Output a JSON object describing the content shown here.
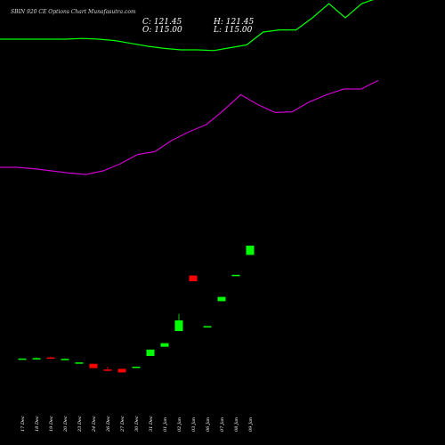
{
  "chart_data": {
    "type": "candlestick",
    "title": "SBIN 920 CE Options Chart Munafasutra.com",
    "ohlc_readout": {
      "close_label": "C: 121.45",
      "open_label": "O: 115.00",
      "high_label": "H: 121.45",
      "low_label": "L: 115.00"
    },
    "x_labels": [
      "17 Dec",
      "18 Dec",
      "19 Dec",
      "20 Dec",
      "23 Dec",
      "24 Dec",
      "26 Dec",
      "27 Dec",
      "30 Dec",
      "31 Dec",
      "01 Jan",
      "02 Jan",
      "03 Jan",
      "06 Jan",
      "07 Jan",
      "08 Jan",
      "09 Jan"
    ],
    "candles": [
      {
        "o": 21.0,
        "h": 21.0,
        "c": 21.5,
        "l": 20.0
      },
      {
        "o": 22.0,
        "h": 23.0,
        "c": 22.0,
        "l": 21.0
      },
      {
        "o": 23.0,
        "h": 24.0,
        "c": 22.0,
        "l": 22.0
      },
      {
        "o": 21.0,
        "h": 21.5,
        "c": 21.0,
        "l": 20.5
      },
      {
        "o": 16.0,
        "h": 16.0,
        "c": 16.0,
        "l": 16.0
      },
      {
        "o": 14.0,
        "h": 14.0,
        "c": 8.0,
        "l": 8.0
      },
      {
        "o": 6.0,
        "h": 10.0,
        "c": 5.0,
        "l": 4.0
      },
      {
        "o": 7.0,
        "h": 7.0,
        "c": 2.0,
        "l": 2.0
      },
      {
        "o": 10.0,
        "h": 10.0,
        "c": 10.0,
        "l": 10.0
      },
      {
        "o": 25.0,
        "h": 34.0,
        "c": 34.0,
        "l": 25.0
      },
      {
        "o": 38.0,
        "h": 43.0,
        "c": 43.0,
        "l": 38.0
      },
      {
        "o": 60.0,
        "h": 84.0,
        "c": 75.0,
        "l": 60.0
      },
      {
        "o": 138.0,
        "h": 138.0,
        "c": 130.0,
        "l": 130.0
      },
      {
        "o": 67.0,
        "h": 67.0,
        "c": 67.0,
        "l": 67.0
      },
      {
        "o": 102.0,
        "h": 108.0,
        "c": 108.0,
        "l": 102.0
      },
      {
        "o": 139.0,
        "h": 139.0,
        "c": 139.0,
        "l": 139.0
      },
      {
        "o": 167.0,
        "h": 180.0,
        "c": 180.0,
        "l": 167.0
      }
    ],
    "moving_averages": [
      {
        "color": "#00ff00",
        "values": [
          470,
          470,
          470,
          470,
          470,
          471,
          470,
          468,
          464,
          460,
          457,
          455,
          455,
          454,
          458,
          462,
          480,
          483,
          483,
          500,
          520,
          500,
          520,
          528
        ]
      },
      {
        "color": "#cc00cc",
        "values": [
          290,
          290,
          288,
          285,
          282,
          280,
          285,
          295,
          308,
          312,
          328,
          340,
          350,
          370,
          392,
          378,
          367,
          368,
          382,
          392,
          400,
          400,
          412
        ]
      }
    ],
    "candle_colors": {
      "up": "#00ff00",
      "down": "#ff0000"
    }
  }
}
